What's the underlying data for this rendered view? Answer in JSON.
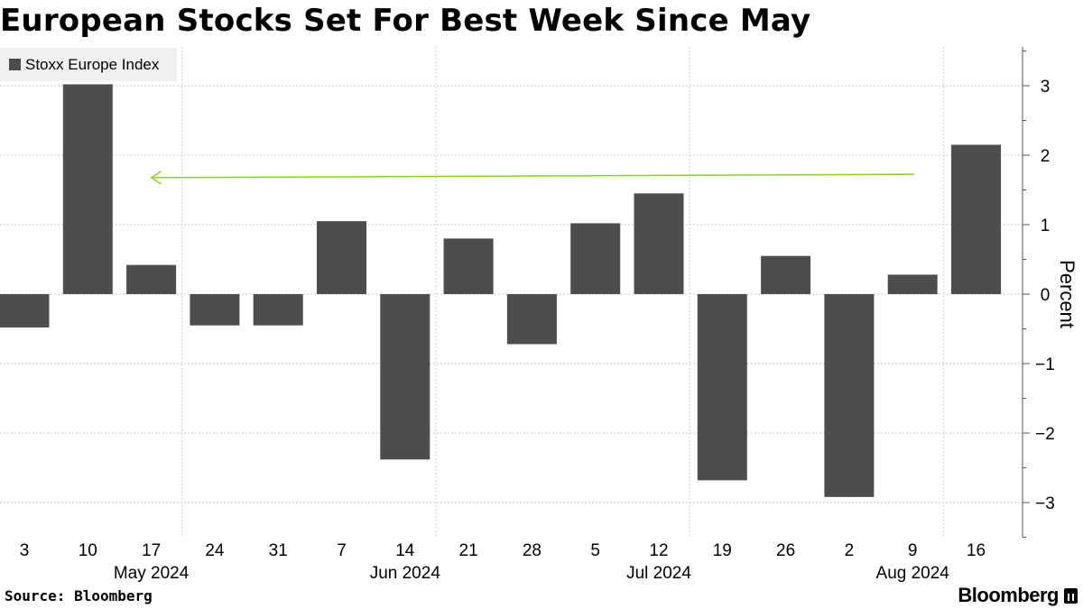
{
  "title": "European Stocks Set For Best Week Since May",
  "source": "Source: Bloomberg",
  "brand": "Bloomberg",
  "chart_data": {
    "type": "bar",
    "categories": [
      "3",
      "10",
      "17",
      "24",
      "31",
      "7",
      "14",
      "21",
      "28",
      "5",
      "12",
      "19",
      "26",
      "2",
      "9",
      "16"
    ],
    "month_labels": [
      {
        "label": "May 2024",
        "index": 2
      },
      {
        "label": "Jun 2024",
        "index": 6
      },
      {
        "label": "Jul 2024",
        "index": 10
      },
      {
        "label": "Aug 2024",
        "index": 14
      }
    ],
    "series": [
      {
        "name": "Stoxx Europe Index",
        "color": "#4d4d4d",
        "values": [
          -0.48,
          3.02,
          0.42,
          -0.45,
          -0.45,
          1.05,
          -2.38,
          0.8,
          -0.72,
          1.02,
          1.45,
          -2.68,
          0.55,
          -2.92,
          0.28,
          2.15
        ]
      }
    ],
    "ylabel": "Percent",
    "yticks": [
      3,
      2,
      1,
      0,
      -1,
      -2,
      -3
    ],
    "ylim": [
      -3.5,
      3.55
    ],
    "grid": true,
    "legend": "top-left",
    "annotation": {
      "type": "arrow",
      "from_index": 14,
      "to_index": 2,
      "value": 1.67,
      "color": "#8ad12b"
    }
  }
}
